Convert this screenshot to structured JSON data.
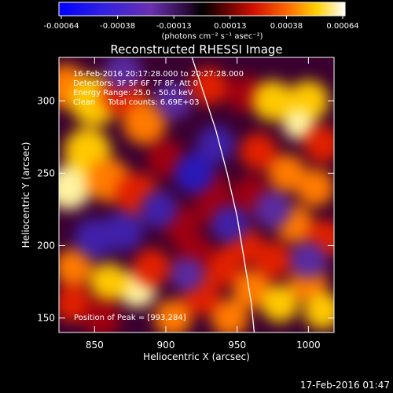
{
  "chart_data": {
    "type": "heatmap",
    "title": "Reconstructed RHESSI Image",
    "xlabel": "Heliocentric X (arcsec)",
    "ylabel": "Heliocentric Y (arcsec)",
    "xlim": [
      825,
      1018
    ],
    "ylim": [
      140,
      330
    ],
    "xticks": [
      850,
      900,
      950,
      1000
    ],
    "yticks": [
      150,
      200,
      250,
      300
    ],
    "colorbar": {
      "ticks": [
        "-0.00064",
        "-0.00038",
        "-0.00013",
        "0.00013",
        "0.00038",
        "0.00064"
      ],
      "unit_label": "(photons cm⁻² s⁻¹ asec⁻²)",
      "range": [
        -0.00064,
        0.00064
      ]
    },
    "info_lines": [
      "16-Feb-2016 20:17:28.000 to 20:27:28.000",
      "Detectors: 3F 5F 6F 7F 8F, Att 0",
      "Energy Range: 25.0 - 50.0 keV",
      "Clean     Total counts: 6.69E+03"
    ],
    "peak_text": "Position of Peak = [993,284]",
    "peak": [
      993,
      284
    ],
    "limb_curve": [
      [
        915,
        340
      ],
      [
        925,
        310
      ],
      [
        935,
        280
      ],
      [
        943,
        250
      ],
      [
        950,
        220
      ],
      [
        955,
        190
      ],
      [
        960,
        160
      ],
      [
        962,
        140
      ]
    ],
    "blobs": [
      {
        "x": 830,
        "y": 310,
        "v": 0.6,
        "s": 14
      },
      {
        "x": 850,
        "y": 300,
        "v": 0.75,
        "s": 16
      },
      {
        "x": 870,
        "y": 305,
        "v": 0.55,
        "s": 14
      },
      {
        "x": 885,
        "y": 285,
        "v": 0.6,
        "s": 14
      },
      {
        "x": 845,
        "y": 265,
        "v": 0.75,
        "s": 15
      },
      {
        "x": 832,
        "y": 240,
        "v": 0.95,
        "s": 14
      },
      {
        "x": 860,
        "y": 245,
        "v": 0.7,
        "s": 14
      },
      {
        "x": 880,
        "y": 235,
        "v": 0.55,
        "s": 14
      },
      {
        "x": 900,
        "y": 260,
        "v": 0.3,
        "s": 12
      },
      {
        "x": 930,
        "y": 310,
        "v": 0.45,
        "s": 12
      },
      {
        "x": 955,
        "y": 305,
        "v": 0.3,
        "s": 12
      },
      {
        "x": 975,
        "y": 300,
        "v": 0.8,
        "s": 13
      },
      {
        "x": 1000,
        "y": 300,
        "v": 0.8,
        "s": 13
      },
      {
        "x": 993,
        "y": 284,
        "v": 1.0,
        "s": 10
      },
      {
        "x": 1010,
        "y": 270,
        "v": 0.55,
        "s": 12
      },
      {
        "x": 965,
        "y": 265,
        "v": 0.55,
        "s": 12
      },
      {
        "x": 985,
        "y": 250,
        "v": 0.7,
        "s": 12
      },
      {
        "x": 1005,
        "y": 240,
        "v": 0.6,
        "s": 12
      },
      {
        "x": 990,
        "y": 215,
        "v": 0.65,
        "s": 12
      },
      {
        "x": 1012,
        "y": 205,
        "v": 0.55,
        "s": 12
      },
      {
        "x": 975,
        "y": 190,
        "v": 0.45,
        "s": 12
      },
      {
        "x": 955,
        "y": 200,
        "v": 0.55,
        "s": 12
      },
      {
        "x": 940,
        "y": 185,
        "v": 0.45,
        "s": 12
      },
      {
        "x": 960,
        "y": 170,
        "v": 0.6,
        "s": 12
      },
      {
        "x": 980,
        "y": 160,
        "v": 0.75,
        "s": 12
      },
      {
        "x": 1000,
        "y": 175,
        "v": 0.6,
        "s": 12
      },
      {
        "x": 1010,
        "y": 155,
        "v": 0.75,
        "s": 12
      },
      {
        "x": 945,
        "y": 150,
        "v": 0.6,
        "s": 12
      },
      {
        "x": 925,
        "y": 165,
        "v": 0.45,
        "s": 12
      },
      {
        "x": 905,
        "y": 150,
        "v": 0.65,
        "s": 12
      },
      {
        "x": 880,
        "y": 170,
        "v": 0.9,
        "s": 12
      },
      {
        "x": 890,
        "y": 185,
        "v": 0.55,
        "s": 12
      },
      {
        "x": 860,
        "y": 175,
        "v": 0.75,
        "s": 12
      },
      {
        "x": 835,
        "y": 185,
        "v": 0.65,
        "s": 12
      },
      {
        "x": 835,
        "y": 160,
        "v": 0.55,
        "s": 12
      },
      {
        "x": 855,
        "y": 150,
        "v": 0.4,
        "s": 12
      },
      {
        "x": 910,
        "y": 215,
        "v": 0.35,
        "s": 12
      },
      {
        "x": 920,
        "y": 195,
        "v": 0.4,
        "s": 12
      },
      {
        "x": 930,
        "y": 240,
        "v": 0.25,
        "s": 12
      },
      {
        "x": 935,
        "y": 225,
        "v": 0.2,
        "s": 12
      },
      {
        "x": 960,
        "y": 235,
        "v": 0.3,
        "s": 12
      },
      {
        "x": 870,
        "y": 210,
        "v": -0.5,
        "s": 13
      },
      {
        "x": 850,
        "y": 205,
        "v": -0.45,
        "s": 13
      },
      {
        "x": 895,
        "y": 225,
        "v": -0.5,
        "s": 12
      },
      {
        "x": 920,
        "y": 250,
        "v": -0.6,
        "s": 13
      },
      {
        "x": 935,
        "y": 270,
        "v": -0.45,
        "s": 12
      },
      {
        "x": 945,
        "y": 215,
        "v": -0.45,
        "s": 12
      },
      {
        "x": 905,
        "y": 300,
        "v": -0.3,
        "s": 12
      },
      {
        "x": 870,
        "y": 320,
        "v": -0.25,
        "s": 12
      },
      {
        "x": 975,
        "y": 225,
        "v": -0.3,
        "s": 12
      },
      {
        "x": 1000,
        "y": 190,
        "v": -0.3,
        "s": 12
      },
      {
        "x": 915,
        "y": 180,
        "v": -0.35,
        "s": 11
      }
    ]
  },
  "timestamp": "17-Feb-2016 01:47",
  "colors": {
    "background": "#000000",
    "text": "#ffffff",
    "limb": "#ffffff"
  }
}
